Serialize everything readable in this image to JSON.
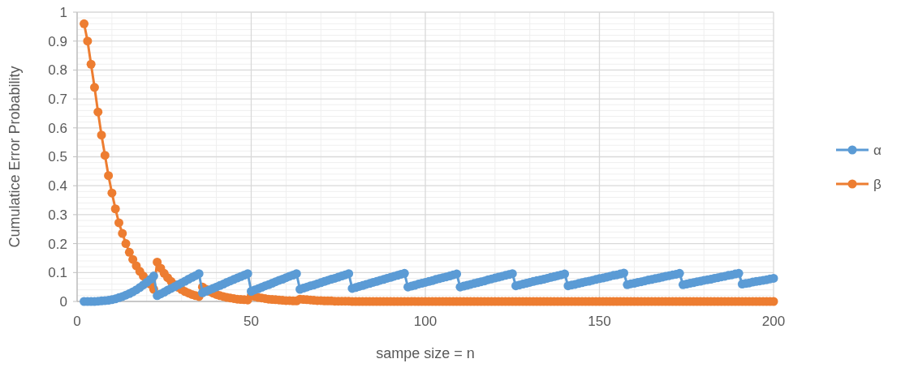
{
  "chart_data": {
    "type": "line",
    "xlabel": "sampe size = n",
    "ylabel": "Cumulatice Error Probability",
    "x": [
      2,
      3,
      4,
      5,
      6,
      7,
      8,
      9,
      10,
      11,
      12,
      13,
      14,
      15,
      16,
      17,
      18,
      19,
      20,
      21,
      22,
      23,
      24,
      25,
      26,
      27,
      28,
      29,
      30,
      31,
      32,
      33,
      34,
      35,
      36,
      37,
      38,
      39,
      40,
      41,
      42,
      43,
      44,
      45,
      46,
      47,
      48,
      49,
      50,
      51,
      52,
      53,
      54,
      55,
      56,
      57,
      58,
      59,
      60,
      61,
      62,
      63,
      64,
      65,
      66,
      67,
      68,
      69,
      70,
      71,
      72,
      73,
      74,
      75,
      76,
      77,
      78,
      79,
      80,
      81,
      82,
      83,
      84,
      85,
      86,
      87,
      88,
      89,
      90,
      91,
      92,
      93,
      94,
      95,
      96,
      97,
      98,
      99,
      100,
      101,
      102,
      103,
      104,
      105,
      106,
      107,
      108,
      109,
      110,
      111,
      112,
      113,
      114,
      115,
      116,
      117,
      118,
      119,
      120,
      121,
      122,
      123,
      124,
      125,
      126,
      127,
      128,
      129,
      130,
      131,
      132,
      133,
      134,
      135,
      136,
      137,
      138,
      139,
      140,
      141,
      142,
      143,
      144,
      145,
      146,
      147,
      148,
      149,
      150,
      151,
      152,
      153,
      154,
      155,
      156,
      157,
      158,
      159,
      160,
      161,
      162,
      163,
      164,
      165,
      166,
      167,
      168,
      169,
      170,
      171,
      172,
      173,
      174,
      175,
      176,
      177,
      178,
      179,
      180,
      181,
      182,
      183,
      184,
      185,
      186,
      187,
      188,
      189,
      190,
      191,
      192,
      193,
      194,
      195,
      196,
      197,
      198,
      199,
      200
    ],
    "series": [
      {
        "name": "α",
        "color": "#5b9bd5",
        "values": [
          0,
          0,
          0,
          0,
          0.001,
          0.002,
          0.003,
          0.004,
          0.006,
          0.009,
          0.013,
          0.017,
          0.022,
          0.027,
          0.033,
          0.04,
          0.048,
          0.057,
          0.066,
          0.076,
          0.088,
          0.02,
          0.026,
          0.032,
          0.039,
          0.045,
          0.051,
          0.058,
          0.064,
          0.07,
          0.077,
          0.083,
          0.089,
          0.096,
          0.03,
          0.035,
          0.04,
          0.045,
          0.05,
          0.055,
          0.06,
          0.066,
          0.071,
          0.076,
          0.081,
          0.086,
          0.091,
          0.096,
          0.035,
          0.04,
          0.044,
          0.049,
          0.054,
          0.058,
          0.063,
          0.068,
          0.073,
          0.077,
          0.082,
          0.087,
          0.091,
          0.096,
          0.042,
          0.046,
          0.05,
          0.054,
          0.057,
          0.061,
          0.065,
          0.069,
          0.073,
          0.077,
          0.08,
          0.084,
          0.088,
          0.092,
          0.096,
          0.045,
          0.048,
          0.052,
          0.055,
          0.059,
          0.062,
          0.066,
          0.069,
          0.073,
          0.076,
          0.08,
          0.083,
          0.087,
          0.09,
          0.094,
          0.097,
          0.05,
          0.053,
          0.056,
          0.06,
          0.063,
          0.066,
          0.069,
          0.072,
          0.076,
          0.079,
          0.082,
          0.085,
          0.088,
          0.092,
          0.095,
          0.05,
          0.053,
          0.056,
          0.059,
          0.062,
          0.065,
          0.068,
          0.071,
          0.075,
          0.078,
          0.081,
          0.084,
          0.087,
          0.09,
          0.093,
          0.096,
          0.054,
          0.057,
          0.06,
          0.063,
          0.066,
          0.069,
          0.072,
          0.074,
          0.077,
          0.08,
          0.083,
          0.086,
          0.089,
          0.092,
          0.095,
          0.054,
          0.057,
          0.059,
          0.062,
          0.065,
          0.068,
          0.07,
          0.073,
          0.076,
          0.079,
          0.081,
          0.084,
          0.087,
          0.09,
          0.092,
          0.095,
          0.098,
          0.058,
          0.061,
          0.063,
          0.066,
          0.068,
          0.071,
          0.074,
          0.076,
          0.079,
          0.081,
          0.084,
          0.087,
          0.089,
          0.092,
          0.094,
          0.097,
          0.058,
          0.06,
          0.063,
          0.065,
          0.068,
          0.07,
          0.073,
          0.075,
          0.077,
          0.08,
          0.082,
          0.085,
          0.087,
          0.09,
          0.092,
          0.095,
          0.097,
          0.06,
          0.062,
          0.064,
          0.067,
          0.069,
          0.071,
          0.073,
          0.075,
          0.078,
          0.08
        ]
      },
      {
        "name": "β",
        "color": "#ed7d31",
        "values": [
          0.96,
          0.9,
          0.82,
          0.74,
          0.655,
          0.575,
          0.505,
          0.435,
          0.375,
          0.32,
          0.272,
          0.235,
          0.2,
          0.17,
          0.145,
          0.123,
          0.104,
          0.088,
          0.074,
          0.06,
          0.042,
          0.136,
          0.115,
          0.097,
          0.082,
          0.069,
          0.058,
          0.049,
          0.041,
          0.034,
          0.029,
          0.024,
          0.02,
          0.017,
          0.05,
          0.042,
          0.035,
          0.029,
          0.024,
          0.02,
          0.017,
          0.014,
          0.012,
          0.01,
          0.008,
          0.007,
          0.006,
          0.005,
          0.02,
          0.017,
          0.014,
          0.012,
          0.01,
          0.008,
          0.007,
          0.006,
          0.005,
          0.004,
          0.003,
          0.003,
          0.002,
          0.002,
          0.008,
          0.007,
          0.006,
          0.005,
          0.004,
          0.003,
          0.003,
          0.002,
          0.002,
          0.002,
          0.001,
          0.001,
          0.001,
          0.001,
          0.001,
          0,
          0,
          0,
          0,
          0,
          0,
          0,
          0,
          0,
          0,
          0,
          0,
          0,
          0,
          0,
          0,
          0,
          0,
          0,
          0,
          0,
          0,
          0,
          0,
          0,
          0,
          0,
          0,
          0,
          0,
          0,
          0,
          0,
          0,
          0,
          0,
          0,
          0,
          0,
          0,
          0,
          0,
          0,
          0,
          0,
          0,
          0,
          0,
          0,
          0,
          0,
          0,
          0,
          0,
          0,
          0,
          0,
          0,
          0,
          0,
          0,
          0,
          0,
          0,
          0,
          0,
          0,
          0,
          0,
          0,
          0,
          0,
          0,
          0,
          0,
          0,
          0,
          0,
          0,
          0,
          0,
          0,
          0,
          0,
          0,
          0,
          0,
          0,
          0,
          0,
          0,
          0,
          0,
          0,
          0,
          0,
          0,
          0,
          0,
          0,
          0,
          0,
          0,
          0,
          0,
          0,
          0,
          0,
          0,
          0,
          0,
          0,
          0,
          0,
          0,
          0,
          0,
          0,
          0,
          0,
          0,
          0
        ]
      }
    ],
    "xlim": [
      0,
      200
    ],
    "xticks": [
      0,
      50,
      100,
      150,
      200
    ],
    "ylim": [
      0,
      1
    ],
    "yticks": [
      0,
      0.1,
      0.2,
      0.3,
      0.4,
      0.5,
      0.6,
      0.7,
      0.8,
      0.9,
      1
    ],
    "grid": true,
    "legend": "right",
    "marker": "circle",
    "line_style": "solid"
  }
}
